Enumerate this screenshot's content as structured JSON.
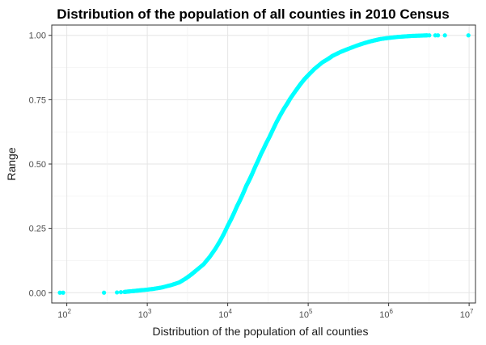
{
  "chart_data": {
    "type": "scatter",
    "title": "Distribution of the population of all counties in 2010 Census",
    "xlabel": "Distribution of the population of all counties",
    "ylabel": "Range",
    "x_scale": "log10",
    "xlim": [
      65,
      12000000
    ],
    "ylim": [
      -0.04,
      1.04
    ],
    "x_ticks": [
      {
        "base": "10",
        "exp": "2"
      },
      {
        "base": "10",
        "exp": "3"
      },
      {
        "base": "10",
        "exp": "4"
      },
      {
        "base": "10",
        "exp": "5"
      },
      {
        "base": "10",
        "exp": "6"
      },
      {
        "base": "10",
        "exp": "7"
      }
    ],
    "y_ticks": [
      "0.00",
      "0.25",
      "0.50",
      "0.75",
      "1.00"
    ],
    "grid": true,
    "point_color": "#00FFFF",
    "points": [
      [
        82,
        0.0
      ],
      [
        90,
        0.0
      ],
      [
        290,
        0.0
      ],
      [
        420,
        0.001
      ],
      [
        470,
        0.002
      ],
      [
        520,
        0.003
      ],
      [
        600,
        0.005
      ],
      [
        700,
        0.007
      ],
      [
        800,
        0.009
      ],
      [
        1000,
        0.012
      ],
      [
        1200,
        0.015
      ],
      [
        1500,
        0.02
      ],
      [
        2000,
        0.03
      ],
      [
        2500,
        0.04
      ],
      [
        3000,
        0.055
      ],
      [
        3500,
        0.07
      ],
      [
        4000,
        0.085
      ],
      [
        5000,
        0.11
      ],
      [
        6000,
        0.14
      ],
      [
        7000,
        0.17
      ],
      [
        8000,
        0.2
      ],
      [
        9000,
        0.23
      ],
      [
        10000,
        0.26
      ],
      [
        11000,
        0.285
      ],
      [
        12000,
        0.31
      ],
      [
        13000,
        0.335
      ],
      [
        14000,
        0.355
      ],
      [
        15000,
        0.375
      ],
      [
        16000,
        0.395
      ],
      [
        17000,
        0.415
      ],
      [
        18000,
        0.43
      ],
      [
        19000,
        0.445
      ],
      [
        20000,
        0.46
      ],
      [
        22000,
        0.49
      ],
      [
        24000,
        0.515
      ],
      [
        26000,
        0.54
      ],
      [
        28000,
        0.56
      ],
      [
        30000,
        0.58
      ],
      [
        33000,
        0.605
      ],
      [
        36000,
        0.63
      ],
      [
        40000,
        0.66
      ],
      [
        45000,
        0.69
      ],
      [
        50000,
        0.715
      ],
      [
        55000,
        0.735
      ],
      [
        60000,
        0.755
      ],
      [
        70000,
        0.785
      ],
      [
        80000,
        0.81
      ],
      [
        90000,
        0.83
      ],
      [
        100000,
        0.845
      ],
      [
        120000,
        0.87
      ],
      [
        150000,
        0.895
      ],
      [
        180000,
        0.91
      ],
      [
        200000,
        0.92
      ],
      [
        250000,
        0.935
      ],
      [
        300000,
        0.945
      ],
      [
        400000,
        0.96
      ],
      [
        500000,
        0.97
      ],
      [
        600000,
        0.977
      ],
      [
        700000,
        0.982
      ],
      [
        800000,
        0.986
      ],
      [
        1000000,
        0.99
      ],
      [
        1300000,
        0.994
      ],
      [
        1600000,
        0.996
      ],
      [
        2000000,
        0.998
      ],
      [
        2500000,
        0.999
      ],
      [
        3000000,
        1.0
      ],
      [
        3200000,
        1.0
      ],
      [
        3800000,
        1.0
      ],
      [
        4100000,
        1.0
      ],
      [
        5000000,
        1.0
      ],
      [
        9800000,
        1.0
      ]
    ]
  }
}
